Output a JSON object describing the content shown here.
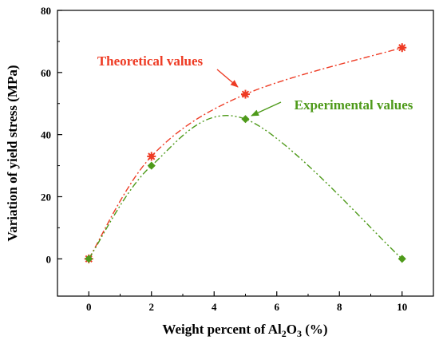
{
  "chart_data": {
    "type": "line",
    "xlabel_prefix": "Weight percent of Al",
    "xlabel_sub1": "2",
    "xlabel_mid": "O",
    "xlabel_sub2": "3",
    "xlabel_suffix": " (%)",
    "ylabel": "Variation of yield stress (MPa)",
    "x_ticks": [
      0,
      2,
      4,
      6,
      8,
      10
    ],
    "x_tick_labels": [
      "0",
      "2",
      "4",
      "6",
      "8",
      "10"
    ],
    "y_ticks": [
      0,
      20,
      40,
      60,
      80
    ],
    "y_tick_labels": [
      "0",
      "20",
      "40",
      "60",
      "80"
    ],
    "xlim": [
      -1,
      11
    ],
    "ylim": [
      -12,
      80
    ],
    "grid": false,
    "series": [
      {
        "name": "Theoretical values",
        "color": "#ee3b24",
        "marker": "asterisk",
        "line_style": "dash-dot",
        "x": [
          0,
          2,
          5,
          10
        ],
        "y": [
          0,
          33,
          53,
          68
        ]
      },
      {
        "name": "Experimental values",
        "color": "#4e9a1a",
        "marker": "diamond",
        "line_style": "dash-dot-dot",
        "x": [
          0,
          2,
          5,
          10
        ],
        "y": [
          0,
          30,
          45,
          0
        ]
      }
    ],
    "annotations": [
      {
        "text": "Theoretical values",
        "series": 0,
        "points_to_x": 5,
        "points_to_y": 53
      },
      {
        "text": "Experimental values",
        "series": 1,
        "points_to_x": 5,
        "points_to_y": 45
      }
    ]
  }
}
